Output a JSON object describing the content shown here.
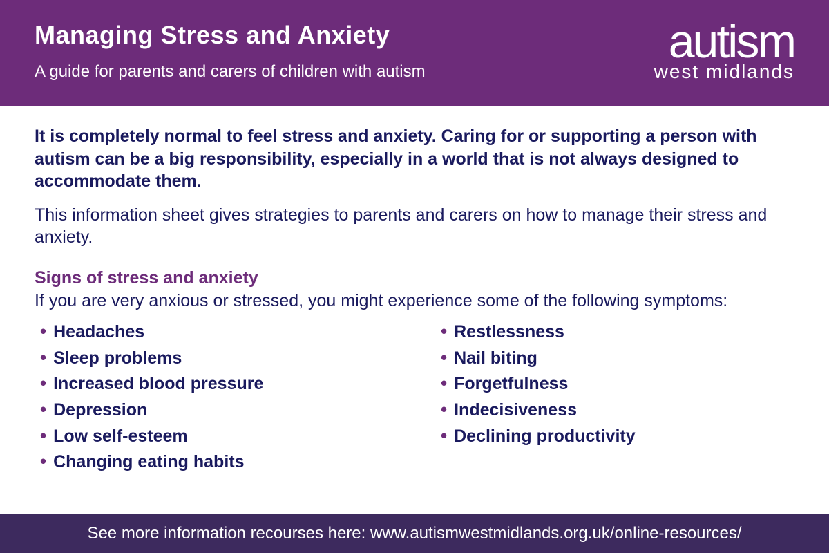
{
  "header": {
    "title": "Managing Stress and Anxiety",
    "subtitle": "A guide for parents and carers of children with autism"
  },
  "logo": {
    "main": "autism",
    "sub": "west midlands"
  },
  "content": {
    "intro_bold": "It is completely normal to feel stress and anxiety. Caring for or supporting a person with autism can be a big responsibility, especially in a world that is not always designed to accommodate them.",
    "intro_text": "This information sheet gives strategies to parents and carers on how to manage their stress and anxiety.",
    "section_title": "Signs of stress and anxiety",
    "section_text": "If you are very anxious or stressed, you might experience some of the following symptoms:",
    "symptoms_left": [
      "Headaches",
      "Sleep problems",
      "Increased blood pressure",
      "Depression",
      "Low self-esteem",
      "Changing eating habits"
    ],
    "symptoms_right": [
      "Restlessness",
      "Nail biting",
      "Forgetfulness",
      "Indecisiveness",
      "Declining productivity"
    ]
  },
  "footer": {
    "text": "See more information recourses here: www.autismwestmidlands.org.uk/online-resources/"
  },
  "colors": {
    "header_bg": "#6d2c7a",
    "footer_bg": "#3d2a5e",
    "accent": "#6d2c7a",
    "body_text": "#1a1a5e",
    "white": "#ffffff"
  }
}
